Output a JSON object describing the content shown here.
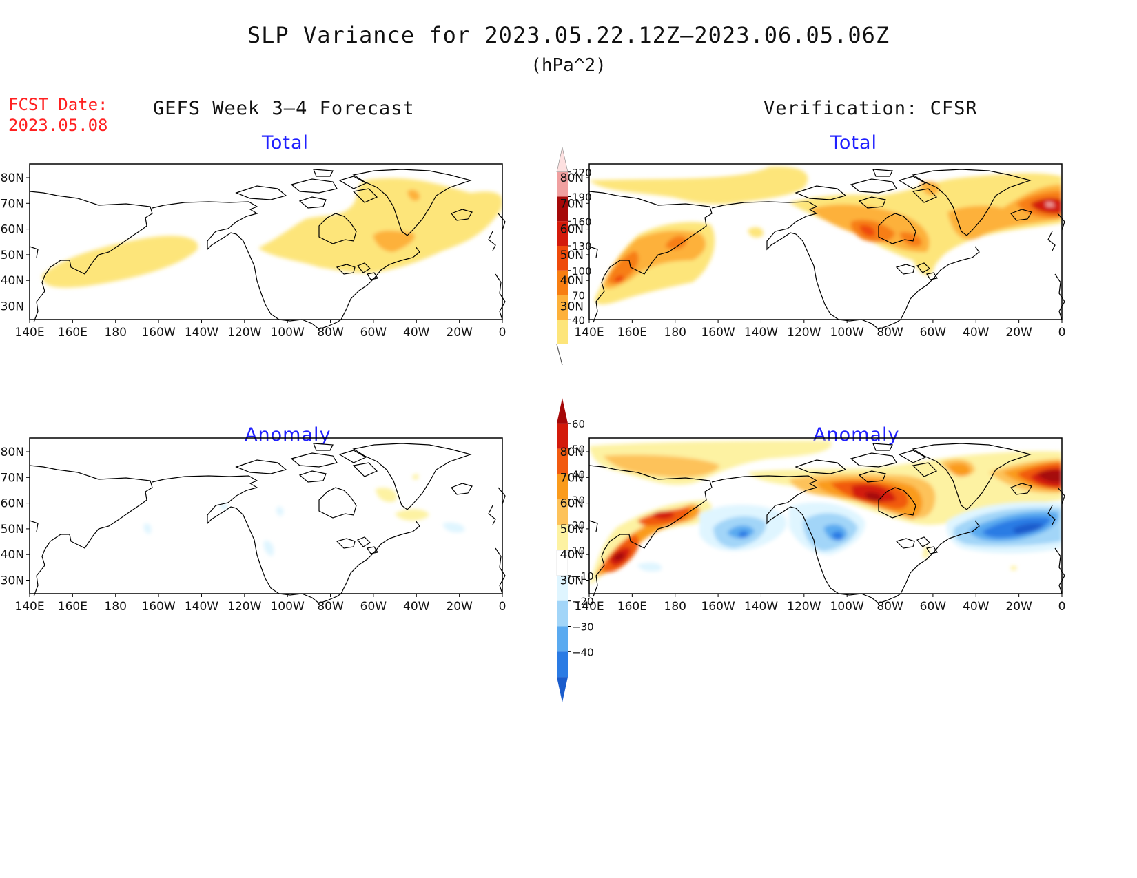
{
  "header": {
    "title": "SLP Variance for 2023.05.22.12Z–2023.06.05.06Z",
    "units": "(hPa^2)",
    "fcst_label": "FCST Date:",
    "fcst_date": "2023.05.08",
    "left_column": "GEFS Week 3–4 Forecast",
    "right_column": "Verification: CFSR"
  },
  "panels": {
    "top_left_title": "Total",
    "top_right_title": "Total",
    "bottom_left_title": "Anomaly",
    "bottom_right_title": "Anomaly"
  },
  "axes": {
    "lon_ticks": [
      "140E",
      "160E",
      "180",
      "160W",
      "140W",
      "120W",
      "100W",
      "80W",
      "60W",
      "40W",
      "20W",
      "0"
    ],
    "lat_ticks": [
      "80N",
      "70N",
      "60N",
      "50N",
      "40N",
      "30N"
    ]
  },
  "colorbars": {
    "total": {
      "levels": [
        "40",
        "70",
        "100",
        "130",
        "160",
        "190",
        "220"
      ],
      "colors": [
        "#fde57a",
        "#fdb13a",
        "#f77e12",
        "#ee4a0a",
        "#d31a0a",
        "#a50808",
        "#f0a0a0",
        "#fde0e0"
      ]
    },
    "anomaly": {
      "levels": [
        "60",
        "50",
        "40",
        "30",
        "20",
        "10",
        "−10",
        "−20",
        "−30",
        "−40"
      ],
      "colors": [
        "#a50808",
        "#d31a0a",
        "#f15a10",
        "#fa9b1c",
        "#fdc25a",
        "#fdf2a2",
        "#ffffff",
        "#dff5ff",
        "#a2d5f8",
        "#5aaaf0",
        "#2a7be4",
        "#1a5ccc"
      ]
    }
  }
}
